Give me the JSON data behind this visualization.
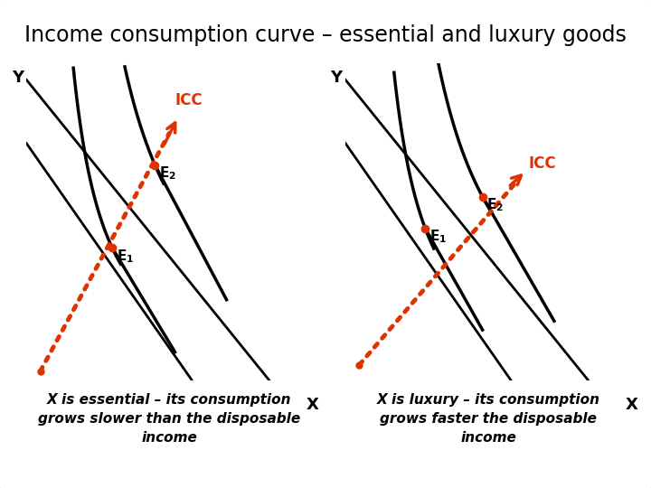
{
  "title": "Income consumption curve – essential and luxury goods",
  "title_fontsize": 17,
  "background_color": "#ffffff",
  "border_color": "#bbbbbb",
  "icc_color": "#dd3300",
  "axis_color": "#000000",
  "curve_color": "#000000",
  "label_color": "#000000",
  "icc_label_color": "#dd3300",
  "left_caption": "X is essential – its consumption\ngrows slower than the disposable\nincome",
  "right_caption": "X is luxury – its consumption\ngrows faster the disposable\nincome",
  "caption_fontsize": 11,
  "caption_style": "italic"
}
